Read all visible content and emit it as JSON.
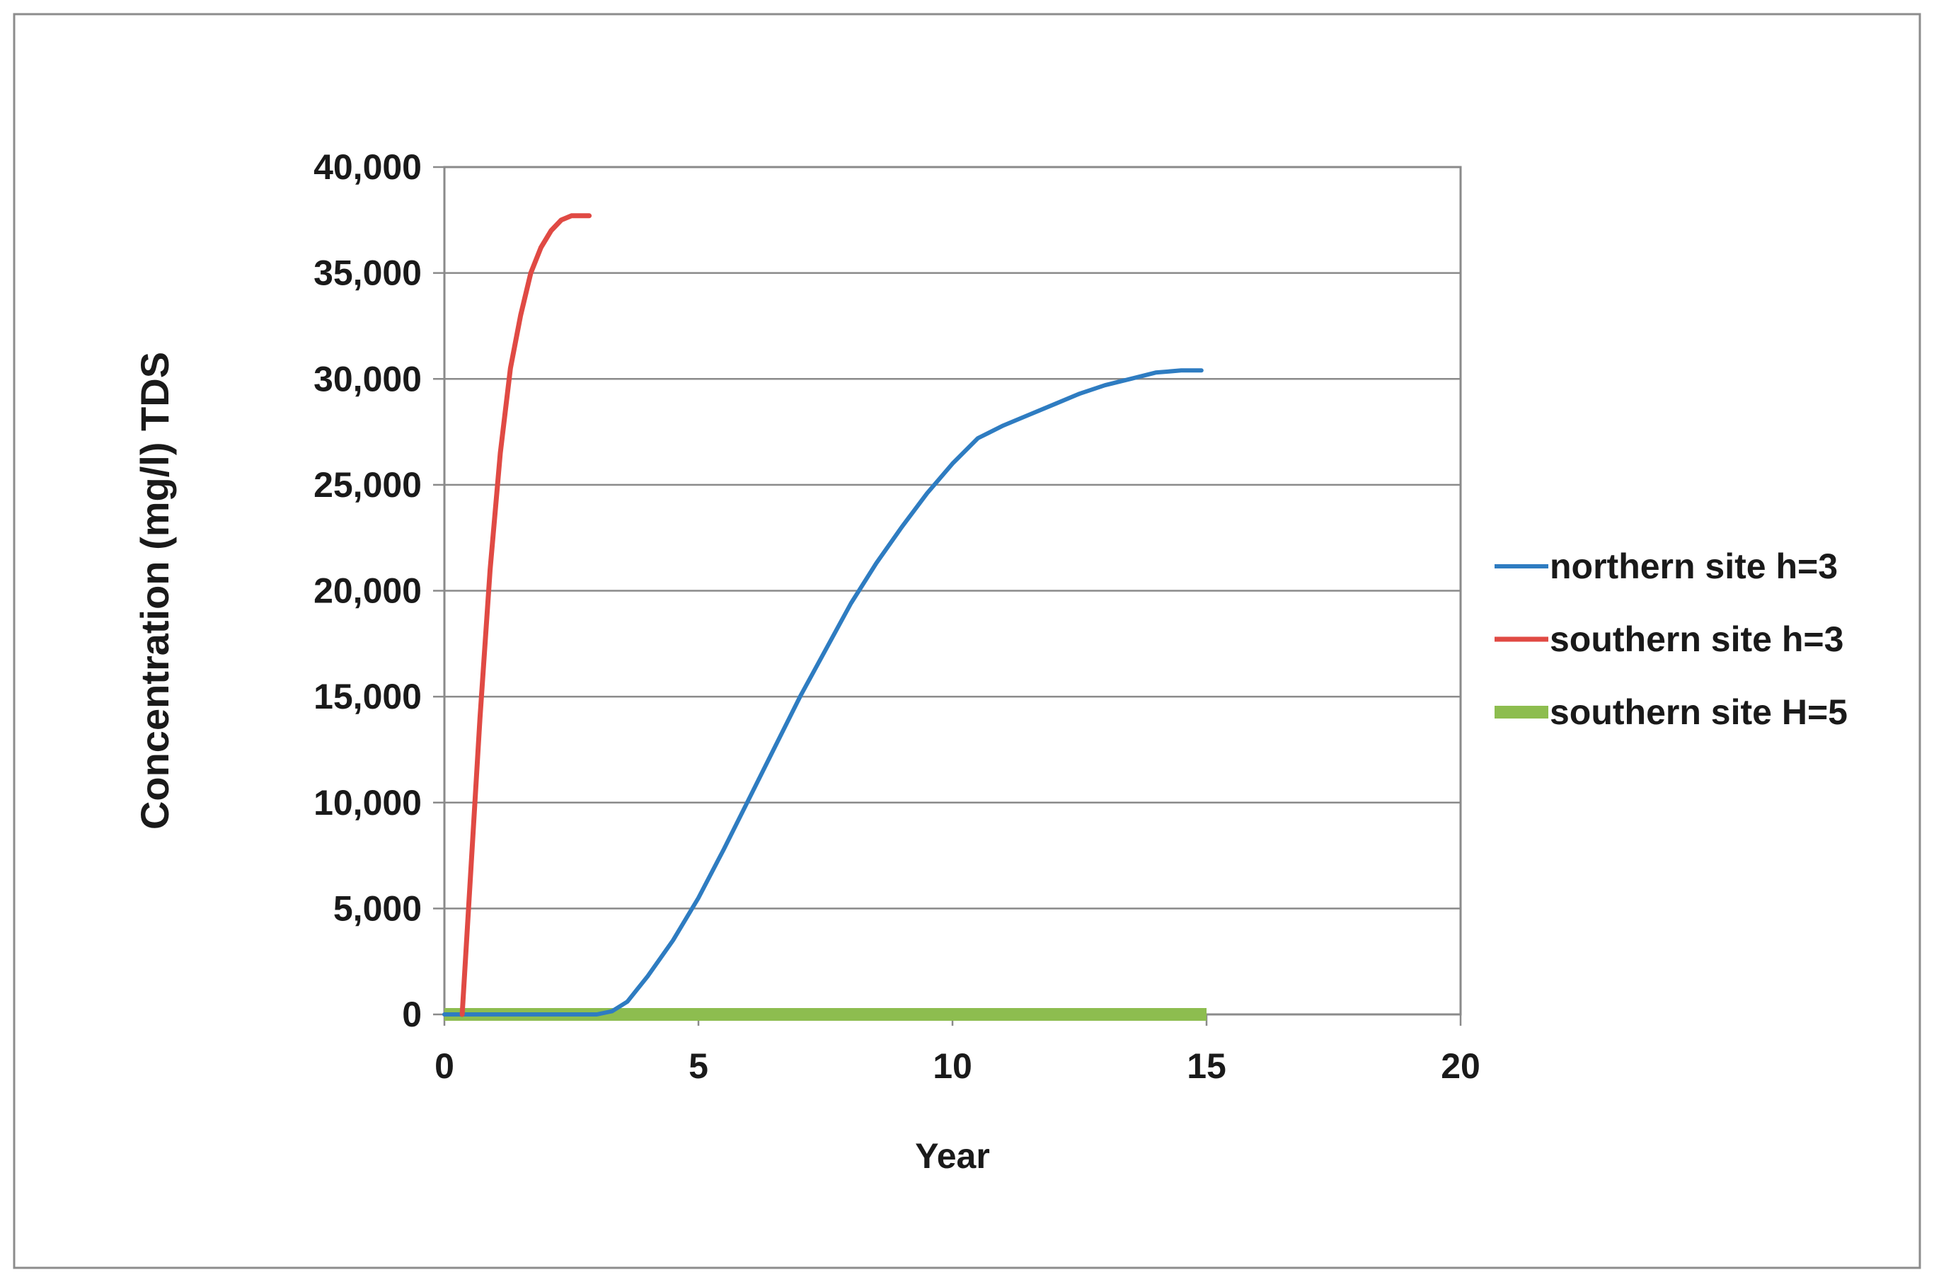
{
  "chart_data": {
    "type": "line",
    "title": "",
    "xlabel": "Year",
    "ylabel": "Concentration (mg/l) TDS",
    "xlim": [
      0,
      20
    ],
    "ylim": [
      0,
      40000
    ],
    "x_ticks": [
      0,
      5,
      10,
      15,
      20
    ],
    "x_tick_labels": [
      "0",
      "5",
      "10",
      "15",
      "20"
    ],
    "y_ticks": [
      0,
      5000,
      10000,
      15000,
      20000,
      25000,
      30000,
      35000,
      40000
    ],
    "y_tick_labels": [
      "0",
      "5,000",
      "10,000",
      "15,000",
      "20,000",
      "25,000",
      "30,000",
      "35,000",
      "40,000"
    ],
    "grid": "horizontal",
    "legend_position": "right",
    "series": [
      {
        "name": "northern site h=3",
        "color": "#2e7cc1",
        "x": [
          0,
          3.0,
          3.3,
          3.6,
          4.0,
          4.5,
          5.0,
          5.5,
          6.0,
          6.5,
          7.0,
          7.5,
          8.0,
          8.5,
          9.0,
          9.5,
          10.0,
          10.5,
          11.0,
          11.5,
          12.0,
          12.5,
          13.0,
          13.5,
          14.0,
          14.5,
          14.9
        ],
        "y": [
          0,
          0,
          150,
          600,
          1800,
          3500,
          5500,
          7800,
          10200,
          12600,
          15000,
          17200,
          19400,
          21300,
          23000,
          24600,
          26000,
          27200,
          27800,
          28300,
          28800,
          29300,
          29700,
          30000,
          30300,
          30400,
          30400
        ]
      },
      {
        "name": "southern site h=3",
        "color": "#e04a44",
        "x": [
          0.35,
          0.5,
          0.7,
          0.9,
          1.1,
          1.3,
          1.5,
          1.7,
          1.9,
          2.1,
          2.3,
          2.5,
          2.7,
          2.85
        ],
        "y": [
          0,
          6000,
          14000,
          21000,
          26500,
          30500,
          33000,
          35000,
          36200,
          37000,
          37500,
          37700,
          37700,
          37700
        ]
      },
      {
        "name": "southern site H=5",
        "color": "#8dbd4f",
        "x": [
          0,
          15
        ],
        "y": [
          0,
          0
        ]
      }
    ]
  }
}
